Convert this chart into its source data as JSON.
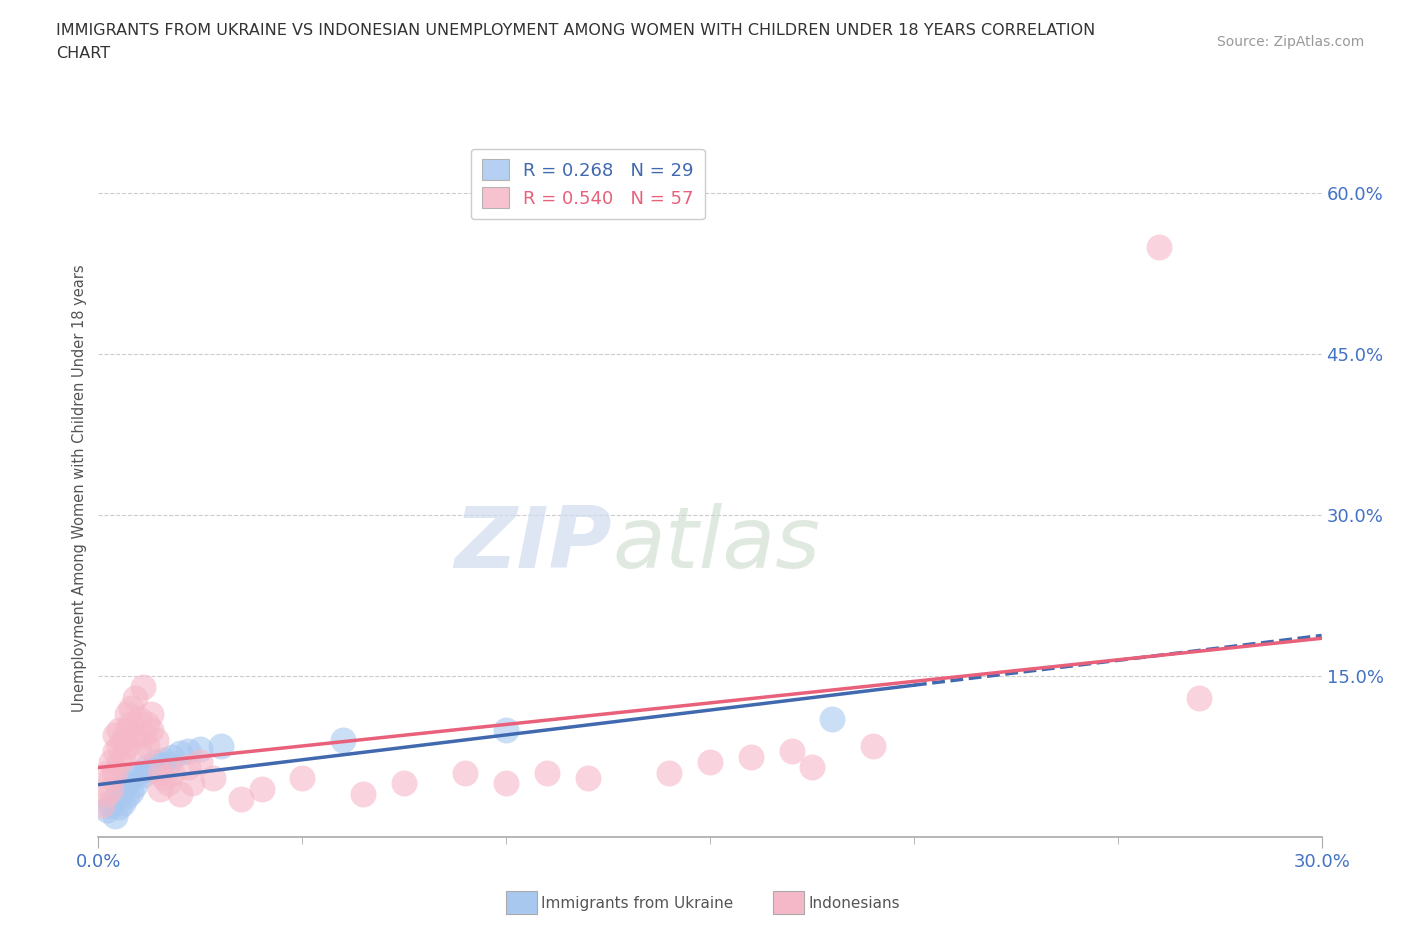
{
  "title_line1": "IMMIGRANTS FROM UKRAINE VS INDONESIAN UNEMPLOYMENT AMONG WOMEN WITH CHILDREN UNDER 18 YEARS CORRELATION",
  "title_line2": "CHART",
  "source": "Source: ZipAtlas.com",
  "ylabel": "Unemployment Among Women with Children Under 18 years",
  "xlim": [
    0.0,
    0.3
  ],
  "ylim": [
    0.0,
    0.65
  ],
  "yticks": [
    0.0,
    0.15,
    0.3,
    0.45,
    0.6
  ],
  "ytick_labels": [
    "",
    "15.0%",
    "30.0%",
    "45.0%",
    "60.0%"
  ],
  "xtick_labels": [
    "0.0%",
    "30.0%"
  ],
  "watermark_zip": "ZIP",
  "watermark_atlas": "atlas",
  "legend_ukraine_R": "0.268",
  "legend_ukraine_N": "29",
  "legend_indonesian_R": "0.540",
  "legend_indonesian_N": "57",
  "ukraine_color": "#A8C8F0",
  "indonesian_color": "#F5B8C8",
  "ukraine_line_color": "#4169B0",
  "indonesian_line_color": "#E8607A",
  "ukraine_scatter": [
    [
      0.002,
      0.025
    ],
    [
      0.003,
      0.03
    ],
    [
      0.004,
      0.035
    ],
    [
      0.004,
      0.02
    ],
    [
      0.005,
      0.04
    ],
    [
      0.005,
      0.028
    ],
    [
      0.006,
      0.032
    ],
    [
      0.006,
      0.045
    ],
    [
      0.007,
      0.038
    ],
    [
      0.007,
      0.05
    ],
    [
      0.008,
      0.042
    ],
    [
      0.008,
      0.055
    ],
    [
      0.009,
      0.048
    ],
    [
      0.01,
      0.06
    ],
    [
      0.011,
      0.058
    ],
    [
      0.012,
      0.065
    ],
    [
      0.013,
      0.062
    ],
    [
      0.014,
      0.07
    ],
    [
      0.015,
      0.068
    ],
    [
      0.016,
      0.072
    ],
    [
      0.017,
      0.068
    ],
    [
      0.018,
      0.075
    ],
    [
      0.02,
      0.078
    ],
    [
      0.022,
      0.08
    ],
    [
      0.025,
      0.082
    ],
    [
      0.03,
      0.085
    ],
    [
      0.06,
      0.09
    ],
    [
      0.1,
      0.1
    ],
    [
      0.18,
      0.11
    ]
  ],
  "indonesian_scatter": [
    [
      0.001,
      0.03
    ],
    [
      0.002,
      0.04
    ],
    [
      0.002,
      0.06
    ],
    [
      0.003,
      0.055
    ],
    [
      0.003,
      0.07
    ],
    [
      0.003,
      0.045
    ],
    [
      0.004,
      0.08
    ],
    [
      0.004,
      0.095
    ],
    [
      0.004,
      0.06
    ],
    [
      0.005,
      0.085
    ],
    [
      0.005,
      0.1
    ],
    [
      0.005,
      0.07
    ],
    [
      0.006,
      0.09
    ],
    [
      0.006,
      0.075
    ],
    [
      0.007,
      0.1
    ],
    [
      0.007,
      0.115
    ],
    [
      0.007,
      0.085
    ],
    [
      0.008,
      0.105
    ],
    [
      0.008,
      0.12
    ],
    [
      0.009,
      0.095
    ],
    [
      0.009,
      0.13
    ],
    [
      0.01,
      0.11
    ],
    [
      0.01,
      0.08
    ],
    [
      0.011,
      0.095
    ],
    [
      0.011,
      0.14
    ],
    [
      0.012,
      0.105
    ],
    [
      0.012,
      0.085
    ],
    [
      0.013,
      0.1
    ],
    [
      0.013,
      0.115
    ],
    [
      0.014,
      0.09
    ],
    [
      0.015,
      0.06
    ],
    [
      0.015,
      0.045
    ],
    [
      0.016,
      0.055
    ],
    [
      0.017,
      0.05
    ],
    [
      0.018,
      0.06
    ],
    [
      0.02,
      0.04
    ],
    [
      0.022,
      0.065
    ],
    [
      0.023,
      0.05
    ],
    [
      0.025,
      0.07
    ],
    [
      0.028,
      0.055
    ],
    [
      0.035,
      0.035
    ],
    [
      0.04,
      0.045
    ],
    [
      0.05,
      0.055
    ],
    [
      0.065,
      0.04
    ],
    [
      0.075,
      0.05
    ],
    [
      0.09,
      0.06
    ],
    [
      0.1,
      0.05
    ],
    [
      0.11,
      0.06
    ],
    [
      0.12,
      0.055
    ],
    [
      0.14,
      0.06
    ],
    [
      0.15,
      0.07
    ],
    [
      0.16,
      0.075
    ],
    [
      0.17,
      0.08
    ],
    [
      0.175,
      0.065
    ],
    [
      0.19,
      0.085
    ],
    [
      0.26,
      0.55
    ],
    [
      0.27,
      0.13
    ]
  ],
  "background_color": "#FFFFFF",
  "grid_color": "#CCCCCC"
}
